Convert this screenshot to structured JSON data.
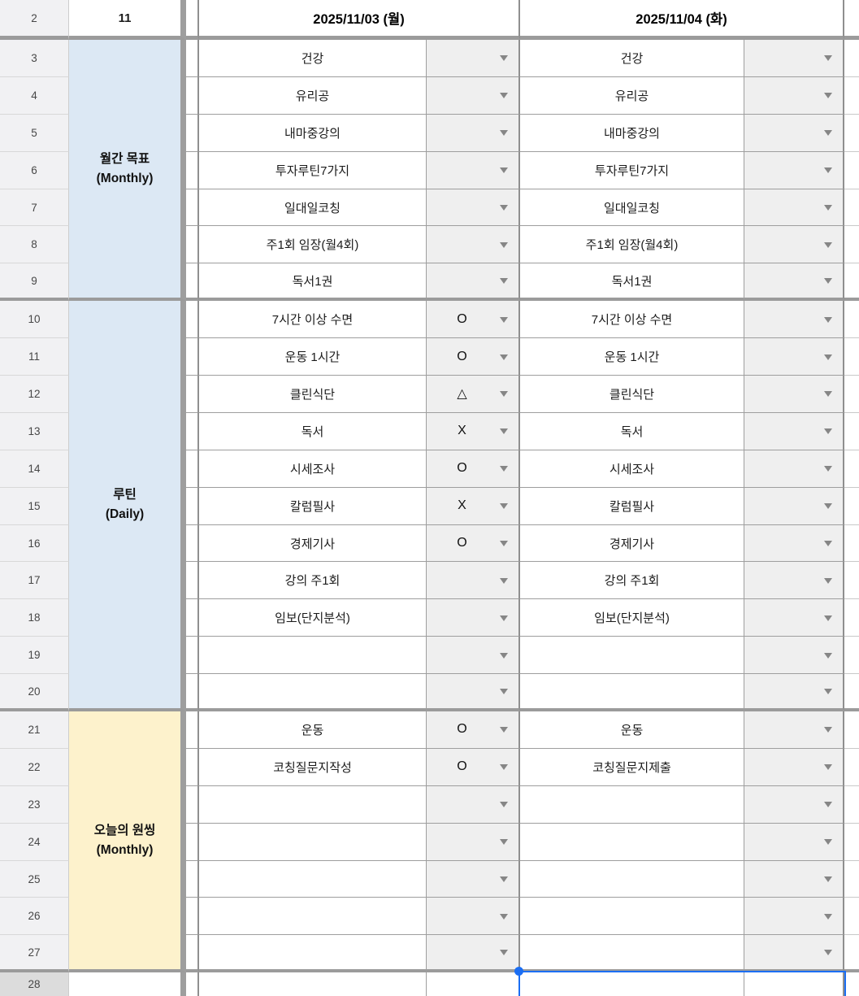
{
  "colors": {
    "section_blue": "#dce8f4",
    "section_yellow": "#fdf2cc",
    "dropdown_cell_bg": "#efefef",
    "row_header_bg": "#f1f1f3",
    "selected_row_header_bg": "#dcdcdc",
    "grid_line_thin": "#9e9e9e",
    "grid_line_thick": "#9b9b9b",
    "selection_blue": "#1b6ef3",
    "arrow_gray": "#868686"
  },
  "icons": {
    "dropdown_arrow": "filled-down-triangle"
  },
  "header": {
    "row_number": "2",
    "week_number": "11",
    "date_columns": [
      "2025/11/03 (월)",
      "2025/11/04 (화)"
    ]
  },
  "sections": [
    {
      "id": "monthly-goals",
      "label_ko": "월간 목표",
      "label_en": "(Monthly)",
      "bg": "#dce8f4",
      "rows": [
        {
          "row": "3",
          "task1": "건강",
          "status1": "",
          "task2": "건강",
          "status2": ""
        },
        {
          "row": "4",
          "task1": "유리공",
          "status1": "",
          "task2": "유리공",
          "status2": ""
        },
        {
          "row": "5",
          "task1": "내마중강의",
          "status1": "",
          "task2": "내마중강의",
          "status2": ""
        },
        {
          "row": "6",
          "task1": "투자루틴7가지",
          "status1": "",
          "task2": "투자루틴7가지",
          "status2": ""
        },
        {
          "row": "7",
          "task1": "일대일코칭",
          "status1": "",
          "task2": "일대일코칭",
          "status2": ""
        },
        {
          "row": "8",
          "task1": "주1회 임장(월4회)",
          "status1": "",
          "task2": "주1회 임장(월4회)",
          "status2": ""
        },
        {
          "row": "9",
          "task1": "독서1권",
          "status1": "",
          "task2": "독서1권",
          "status2": ""
        }
      ]
    },
    {
      "id": "daily-routine",
      "label_ko": "루틴",
      "label_en": "(Daily)",
      "bg": "#dce8f4",
      "rows": [
        {
          "row": "10",
          "task1": "7시간 이상 수면",
          "status1": "O",
          "task2": "7시간 이상 수면",
          "status2": ""
        },
        {
          "row": "11",
          "task1": "운동 1시간",
          "status1": "O",
          "task2": "운동 1시간",
          "status2": ""
        },
        {
          "row": "12",
          "task1": "클린식단",
          "status1": "△",
          "task2": "클린식단",
          "status2": ""
        },
        {
          "row": "13",
          "task1": "독서",
          "status1": "X",
          "task2": "독서",
          "status2": ""
        },
        {
          "row": "14",
          "task1": "시세조사",
          "status1": "O",
          "task2": "시세조사",
          "status2": ""
        },
        {
          "row": "15",
          "task1": "칼럼필사",
          "status1": "X",
          "task2": "칼럼필사",
          "status2": ""
        },
        {
          "row": "16",
          "task1": "경제기사",
          "status1": "O",
          "task2": "경제기사",
          "status2": ""
        },
        {
          "row": "17",
          "task1": "강의 주1회",
          "status1": "",
          "task2": "강의 주1회",
          "status2": ""
        },
        {
          "row": "18",
          "task1": "임보(단지분석)",
          "status1": "",
          "task2": "임보(단지분석)",
          "status2": ""
        },
        {
          "row": "19",
          "task1": "",
          "status1": "",
          "task2": "",
          "status2": ""
        },
        {
          "row": "20",
          "task1": "",
          "status1": "",
          "task2": "",
          "status2": ""
        }
      ]
    },
    {
      "id": "today-one-thing",
      "label_ko": "오늘의 원씽",
      "label_en": "(Monthly)",
      "bg": "#fdf2cc",
      "rows": [
        {
          "row": "21",
          "task1": "운동",
          "status1": "O",
          "task2": "운동",
          "status2": ""
        },
        {
          "row": "22",
          "task1": "코칭질문지작성",
          "status1": "O",
          "task2": "코칭질문지제출",
          "status2": ""
        },
        {
          "row": "23",
          "task1": "",
          "status1": "",
          "task2": "",
          "status2": ""
        },
        {
          "row": "24",
          "task1": "",
          "status1": "",
          "task2": "",
          "status2": ""
        },
        {
          "row": "25",
          "task1": "",
          "status1": "",
          "task2": "",
          "status2": ""
        },
        {
          "row": "26",
          "task1": "",
          "status1": "",
          "task2": "",
          "status2": ""
        },
        {
          "row": "27",
          "task1": "",
          "status1": "",
          "task2": "",
          "status2": ""
        }
      ]
    }
  ],
  "bottom_row": {
    "row": "28"
  }
}
